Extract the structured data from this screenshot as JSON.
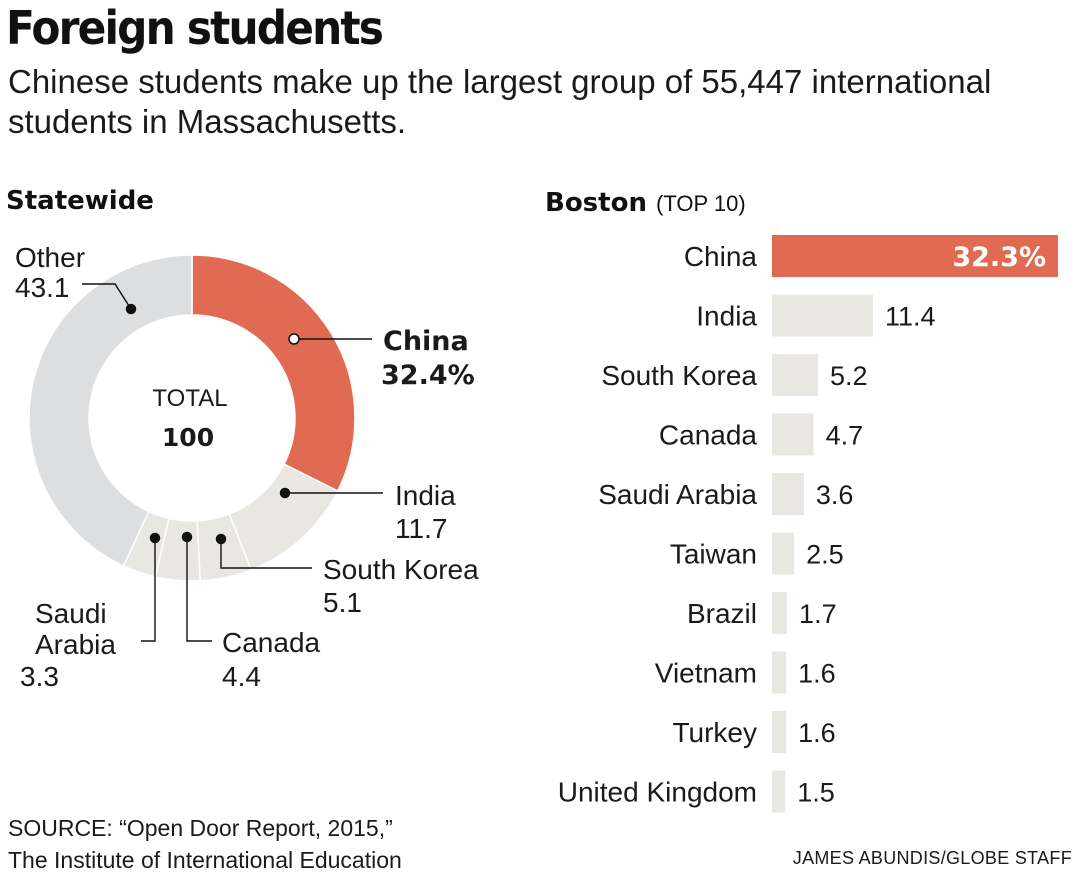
{
  "header": {
    "title": "Foreign students",
    "subtitle": "Chinese students make up the largest group of 55,447 international students in Massachusetts."
  },
  "statewide": {
    "heading": "Statewide",
    "center_label": "TOTAL",
    "center_value": "100"
  },
  "boston": {
    "heading": "Boston",
    "heading_note": "(TOP 10)"
  },
  "footer": {
    "source_line1": "SOURCE: “Open Door Report, 2015,”",
    "source_line2": "The Institute of International Education",
    "credit": "JAMES ABUNDIS/GLOBE STAFF"
  },
  "colors": {
    "highlight": "#E06B52",
    "muted": "#E8E7E1",
    "other": "#DDDEDF",
    "text": "#1a1a1a"
  },
  "chart_data": [
    {
      "type": "pie",
      "title": "Statewide",
      "slices": [
        {
          "label": "China",
          "value": 32.4,
          "display": "32.4%",
          "highlight": true
        },
        {
          "label": "India",
          "value": 11.7,
          "display": "11.7"
        },
        {
          "label": "South Korea",
          "value": 5.1,
          "display": "5.1"
        },
        {
          "label": "Canada",
          "value": 4.4,
          "display": "4.4"
        },
        {
          "label": "Saudi Arabia",
          "value": 3.3,
          "display": "3.3"
        },
        {
          "label": "Other",
          "value": 43.1,
          "display": "43.1"
        }
      ]
    },
    {
      "type": "bar",
      "orientation": "horizontal",
      "title": "Boston",
      "categories": [
        "China",
        "India",
        "South Korea",
        "Canada",
        "Saudi Arabia",
        "Taiwan",
        "Brazil",
        "Vietnam",
        "Turkey",
        "United Kingdom"
      ],
      "values": [
        32.3,
        11.4,
        5.2,
        4.7,
        3.6,
        2.5,
        1.7,
        1.6,
        1.6,
        1.5
      ],
      "value_labels": [
        "32.3%",
        "11.4",
        "5.2",
        "4.7",
        "3.6",
        "2.5",
        "1.7",
        "1.6",
        "1.6",
        "1.5"
      ],
      "highlight_index": 0
    }
  ]
}
